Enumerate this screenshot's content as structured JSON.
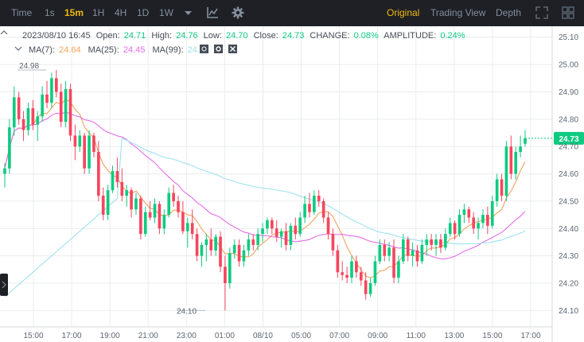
{
  "toolbar": {
    "time_label": "Time",
    "intervals": [
      "1s",
      "15m",
      "1H",
      "4H",
      "1D",
      "1W"
    ],
    "active_interval": "15m",
    "chart_types": [
      "Original",
      "Trading View",
      "Depth"
    ],
    "active_chart_type": "Original",
    "icons": [
      "dropdown-caret-icon",
      "indicator-icon",
      "settings-icon",
      "fullscreen-icon",
      "grid-layout-icon"
    ]
  },
  "legend": {
    "ohlc": {
      "datetime": "2023/08/10 16:45",
      "open_label": "Open:",
      "open": "24.71",
      "high_label": "High:",
      "high": "24.76",
      "low_label": "Low:",
      "low": "24.70",
      "close_label": "Close:",
      "close": "24.73",
      "change_label": "CHANGE:",
      "change": "0.08%",
      "amplitude_label": "AMPLITUDE:",
      "amplitude": "0.24%"
    },
    "ma": [
      {
        "label": "MA(7):",
        "value": "24.64",
        "color": "#f0a35e"
      },
      {
        "label": "MA(25):",
        "value": "24.45",
        "color": "#e66ce6"
      },
      {
        "label": "MA(99):",
        "value": "24.42",
        "color": "#9fe2ee"
      }
    ]
  },
  "chart_data": {
    "type": "candlestick",
    "up_color": "#0ecb81",
    "down_color": "#f6465d",
    "ylim": [
      24.04,
      25.14
    ],
    "y_ticks": [
      "25.10",
      "25.00",
      "24.90",
      "24.80",
      "24.70",
      "24.60",
      "24.50",
      "24.40",
      "24.30",
      "24.20",
      "24.10"
    ],
    "x_ticks": [
      "15:00",
      "17:00",
      "19:00",
      "21:00",
      "23:00",
      "01:00",
      "08/10",
      "05:00",
      "07:00",
      "09:00",
      "11:00",
      "13:00",
      "15:00",
      "17:00"
    ],
    "last_price": "24.73",
    "high_marker": "24.98",
    "low_marker": "24.10",
    "candles": [
      [
        24.6,
        24.64,
        24.55,
        24.62
      ],
      [
        24.62,
        24.8,
        24.6,
        24.77
      ],
      [
        24.77,
        24.92,
        24.74,
        24.88
      ],
      [
        24.88,
        24.9,
        24.78,
        24.8
      ],
      [
        24.8,
        24.83,
        24.72,
        24.76
      ],
      [
        24.76,
        24.86,
        24.74,
        24.84
      ],
      [
        24.84,
        24.87,
        24.76,
        24.78
      ],
      [
        24.78,
        24.83,
        24.72,
        24.81
      ],
      [
        24.81,
        24.92,
        24.79,
        24.89
      ],
      [
        24.89,
        24.94,
        24.84,
        24.86
      ],
      [
        24.86,
        24.97,
        24.84,
        24.95
      ],
      [
        24.95,
        24.98,
        24.88,
        24.9
      ],
      [
        24.9,
        24.93,
        24.77,
        24.79
      ],
      [
        24.79,
        24.94,
        24.77,
        24.91
      ],
      [
        24.91,
        24.93,
        24.72,
        24.74
      ],
      [
        24.74,
        24.78,
        24.65,
        24.7
      ],
      [
        24.7,
        24.76,
        24.68,
        24.74
      ],
      [
        24.74,
        24.75,
        24.6,
        24.62
      ],
      [
        24.62,
        24.76,
        24.6,
        24.74
      ],
      [
        24.74,
        24.75,
        24.66,
        24.68
      ],
      [
        24.68,
        24.72,
        24.5,
        24.52
      ],
      [
        24.52,
        24.55,
        24.43,
        24.45
      ],
      [
        24.45,
        24.56,
        24.43,
        24.54
      ],
      [
        24.54,
        24.63,
        24.53,
        24.61
      ],
      [
        24.61,
        24.66,
        24.55,
        24.57
      ],
      [
        24.57,
        24.62,
        24.5,
        24.52
      ],
      [
        24.52,
        24.56,
        24.48,
        24.54
      ],
      [
        24.54,
        24.55,
        24.44,
        24.47
      ],
      [
        24.47,
        24.53,
        24.45,
        24.51
      ],
      [
        24.51,
        24.52,
        24.36,
        24.38
      ],
      [
        24.38,
        24.48,
        24.37,
        24.46
      ],
      [
        24.46,
        24.5,
        24.43,
        24.44
      ],
      [
        24.44,
        24.51,
        24.42,
        24.49
      ],
      [
        24.49,
        24.5,
        24.38,
        24.4
      ],
      [
        24.4,
        24.47,
        24.38,
        24.45
      ],
      [
        24.45,
        24.55,
        24.44,
        24.53
      ],
      [
        24.53,
        24.56,
        24.48,
        24.5
      ],
      [
        24.5,
        24.52,
        24.44,
        24.46
      ],
      [
        24.46,
        24.5,
        24.38,
        24.39
      ],
      [
        24.39,
        24.44,
        24.33,
        24.42
      ],
      [
        24.42,
        24.47,
        24.36,
        24.38
      ],
      [
        24.38,
        24.4,
        24.28,
        24.3
      ],
      [
        24.3,
        24.35,
        24.26,
        24.34
      ],
      [
        24.34,
        24.38,
        24.28,
        24.36
      ],
      [
        24.36,
        24.4,
        24.3,
        24.32
      ],
      [
        24.32,
        24.38,
        24.3,
        24.37
      ],
      [
        24.37,
        24.39,
        24.24,
        24.26
      ],
      [
        24.26,
        24.3,
        24.1,
        24.2
      ],
      [
        24.2,
        24.33,
        24.18,
        24.31
      ],
      [
        24.31,
        24.36,
        24.29,
        24.34
      ],
      [
        24.34,
        24.36,
        24.26,
        24.28
      ],
      [
        24.28,
        24.34,
        24.26,
        24.32
      ],
      [
        24.32,
        24.38,
        24.3,
        24.36
      ],
      [
        24.36,
        24.38,
        24.32,
        24.34
      ],
      [
        24.34,
        24.4,
        24.32,
        24.38
      ],
      [
        24.38,
        24.42,
        24.35,
        24.4
      ],
      [
        24.4,
        24.44,
        24.38,
        24.43
      ],
      [
        24.43,
        24.44,
        24.38,
        24.4
      ],
      [
        24.4,
        24.43,
        24.35,
        24.37
      ],
      [
        24.37,
        24.4,
        24.33,
        24.39
      ],
      [
        24.39,
        24.42,
        24.32,
        24.34
      ],
      [
        24.34,
        24.42,
        24.32,
        24.41
      ],
      [
        24.41,
        24.44,
        24.36,
        24.38
      ],
      [
        24.38,
        24.46,
        24.37,
        24.44
      ],
      [
        24.44,
        24.52,
        24.42,
        24.49
      ],
      [
        24.49,
        24.53,
        24.44,
        24.46
      ],
      [
        24.46,
        24.54,
        24.45,
        24.52
      ],
      [
        24.52,
        24.54,
        24.48,
        24.5
      ],
      [
        24.5,
        24.51,
        24.42,
        24.44
      ],
      [
        24.44,
        24.46,
        24.36,
        24.38
      ],
      [
        24.38,
        24.4,
        24.3,
        24.32
      ],
      [
        24.32,
        24.34,
        24.22,
        24.24
      ],
      [
        24.24,
        24.28,
        24.21,
        24.23
      ],
      [
        24.23,
        24.26,
        24.2,
        24.22
      ],
      [
        24.22,
        24.3,
        24.2,
        24.28
      ],
      [
        24.28,
        24.3,
        24.22,
        24.24
      ],
      [
        24.24,
        24.26,
        24.19,
        24.21
      ],
      [
        24.21,
        24.24,
        24.14,
        24.16
      ],
      [
        24.16,
        24.22,
        24.15,
        24.2
      ],
      [
        24.2,
        24.3,
        24.19,
        24.28
      ],
      [
        24.28,
        24.36,
        24.27,
        24.34
      ],
      [
        24.34,
        24.36,
        24.28,
        24.3
      ],
      [
        24.3,
        24.35,
        24.28,
        24.33
      ],
      [
        24.33,
        24.36,
        24.2,
        24.22
      ],
      [
        24.22,
        24.3,
        24.2,
        24.28
      ],
      [
        24.28,
        24.38,
        24.27,
        24.36
      ],
      [
        24.36,
        24.37,
        24.28,
        24.3
      ],
      [
        24.3,
        24.35,
        24.26,
        24.32
      ],
      [
        24.32,
        24.34,
        24.26,
        24.28
      ],
      [
        24.28,
        24.36,
        24.27,
        24.34
      ],
      [
        24.34,
        24.38,
        24.3,
        24.36
      ],
      [
        24.36,
        24.38,
        24.32,
        24.34
      ],
      [
        24.34,
        24.38,
        24.3,
        24.36
      ],
      [
        24.36,
        24.38,
        24.31,
        24.33
      ],
      [
        24.33,
        24.4,
        24.32,
        24.38
      ],
      [
        24.38,
        24.44,
        24.37,
        24.42
      ],
      [
        24.42,
        24.43,
        24.36,
        24.38
      ],
      [
        24.38,
        24.47,
        24.37,
        24.45
      ],
      [
        24.45,
        24.49,
        24.42,
        24.47
      ],
      [
        24.47,
        24.48,
        24.42,
        24.44
      ],
      [
        24.44,
        24.46,
        24.38,
        24.4
      ],
      [
        24.4,
        24.44,
        24.36,
        24.42
      ],
      [
        24.42,
        24.47,
        24.4,
        24.45
      ],
      [
        24.45,
        24.48,
        24.38,
        24.41
      ],
      [
        24.41,
        24.52,
        24.4,
        24.5
      ],
      [
        24.5,
        24.6,
        24.48,
        24.58
      ],
      [
        24.58,
        24.6,
        24.5,
        24.52
      ],
      [
        24.52,
        24.72,
        24.5,
        24.7
      ],
      [
        24.7,
        24.74,
        24.58,
        24.6
      ],
      [
        24.6,
        24.7,
        24.58,
        24.68
      ],
      [
        24.68,
        24.74,
        24.66,
        24.7
      ],
      [
        24.71,
        24.76,
        24.7,
        24.73
      ]
    ]
  }
}
